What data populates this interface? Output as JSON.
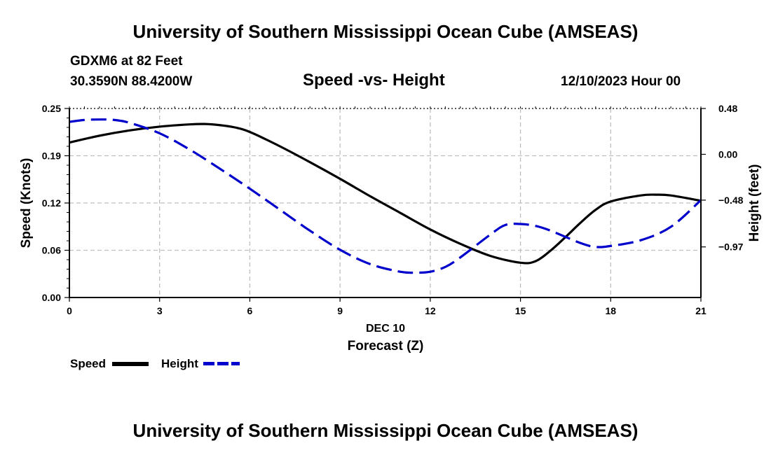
{
  "header": {
    "title": "University of Southern Mississippi Ocean Cube (AMSEAS)",
    "station": "GDXM6 at 82 Feet",
    "coords": "30.3590N  88.4200W",
    "datetime": "12/10/2023 Hour 00"
  },
  "footer": {
    "title": "University of Southern Mississippi Ocean Cube (AMSEAS)"
  },
  "colors": {
    "speed": "#000000",
    "height": "#0000cc",
    "grid": "#bfbfbf"
  },
  "chart_data": {
    "type": "line",
    "title": "Speed -vs- Height",
    "xlabel": "Forecast (Z)",
    "xlabel_date": "DEC 10",
    "ylabel": "Speed (Knots)",
    "y2label": "Height (feet)",
    "xlim": [
      0,
      21
    ],
    "ylim": [
      0,
      0.25
    ],
    "y2lim": [
      -1.5,
      0.48
    ],
    "xticks": [
      0,
      3,
      6,
      9,
      12,
      15,
      18,
      21
    ],
    "xtick_labels": [
      "0",
      "3",
      "6",
      "9",
      "12",
      "15",
      "18",
      "21"
    ],
    "yticks": [
      0,
      0.0625,
      0.125,
      0.1875,
      0.25
    ],
    "ytick_labels": [
      "0.00",
      "0.06",
      "0.12",
      "0.19",
      "0.25"
    ],
    "y2ticks": [
      -0.97,
      -0.48,
      0.0,
      0.48
    ],
    "y2tick_labels": [
      "-0.97",
      "-0.48",
      "0.00",
      "0.48"
    ],
    "grid": true,
    "legend_position": "bottom-left",
    "series": [
      {
        "name": "Speed",
        "axis": "left",
        "style": "solid",
        "x": [
          0,
          1,
          2,
          3,
          4,
          4.5,
          5,
          5.5,
          6,
          7,
          8,
          9,
          10,
          11,
          12,
          13,
          14,
          15,
          15.5,
          16,
          16.5,
          17,
          17.5,
          18,
          19,
          19.5,
          20,
          21
        ],
        "values": [
          0.205,
          0.214,
          0.221,
          0.226,
          0.229,
          0.2295,
          0.228,
          0.225,
          0.219,
          0.2,
          0.179,
          0.157,
          0.134,
          0.112,
          0.09,
          0.071,
          0.055,
          0.046,
          0.048,
          0.062,
          0.08,
          0.099,
          0.116,
          0.127,
          0.135,
          0.136,
          0.135,
          0.128
        ]
      },
      {
        "name": "Height",
        "axis": "right",
        "style": "dashed",
        "x": [
          0,
          0.5,
          1,
          1.5,
          2,
          3,
          4,
          5,
          6,
          7,
          8,
          9,
          10,
          11,
          11.5,
          12,
          12.5,
          13,
          14,
          14.5,
          15,
          15.5,
          16,
          17,
          17.5,
          18,
          19,
          20,
          21
        ],
        "values": [
          0.34,
          0.36,
          0.365,
          0.36,
          0.33,
          0.22,
          0.05,
          -0.15,
          -0.36,
          -0.58,
          -0.8,
          -1.0,
          -1.15,
          -1.23,
          -1.24,
          -1.23,
          -1.18,
          -1.08,
          -0.84,
          -0.74,
          -0.73,
          -0.75,
          -0.8,
          -0.93,
          -0.97,
          -0.96,
          -0.9,
          -0.76,
          -0.48
        ]
      }
    ]
  }
}
